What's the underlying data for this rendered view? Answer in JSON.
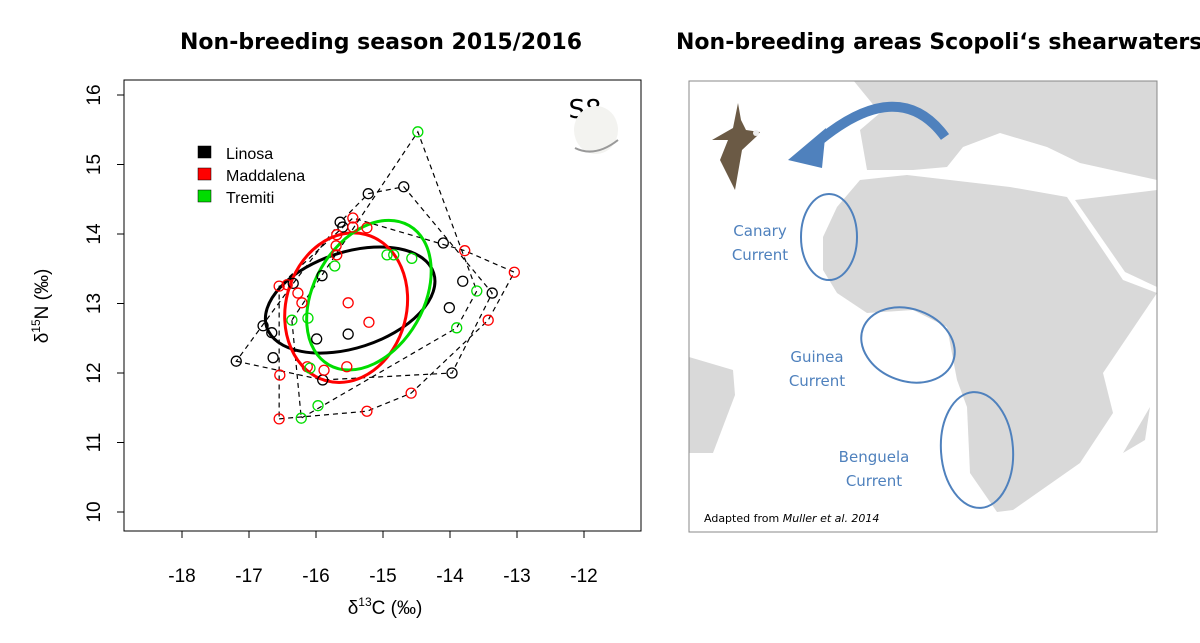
{
  "left_title": "Non-breeding season 2015/2016",
  "right_title": "Non-breeding areas Scopoli‘s shearwaters",
  "chart_data": {
    "type": "scatter",
    "title": "Non-breeding season 2015/2016",
    "xlabel": "δ13C (‰)",
    "ylabel": "δ15N (‰)",
    "xlim": [
      -18.9,
      -11.1
    ],
    "ylim": [
      9.75,
      16.2
    ],
    "xticks": [
      "-18",
      "-17",
      "-16",
      "-15",
      "-14",
      "-13",
      "-12"
    ],
    "yticks": [
      "10",
      "11",
      "12",
      "13",
      "14",
      "15",
      "16"
    ],
    "annotation": "S8",
    "legend_position": "top-left",
    "series": [
      {
        "name": "Linosa",
        "color": "#000000",
        "ellipse": {
          "cx": -15.49,
          "cy": 13.05,
          "a": 1.31,
          "b": 0.69,
          "angle": -18
        },
        "points": [
          [
            -17.19,
            12.17
          ],
          [
            -16.79,
            12.68
          ],
          [
            -16.66,
            12.58
          ],
          [
            -16.64,
            12.22
          ],
          [
            -16.34,
            13.29
          ],
          [
            -15.91,
            13.4
          ],
          [
            -15.64,
            14.17
          ],
          [
            -15.6,
            14.1
          ],
          [
            -15.22,
            14.58
          ],
          [
            -14.69,
            14.68
          ],
          [
            -15.99,
            12.49
          ],
          [
            -15.52,
            12.56
          ],
          [
            -15.9,
            11.9
          ],
          [
            -14.1,
            13.87
          ],
          [
            -13.81,
            13.32
          ],
          [
            -14.01,
            12.94
          ],
          [
            -13.97,
            12.0
          ],
          [
            -13.37,
            13.15
          ]
        ]
      },
      {
        "name": "Maddalena",
        "color": "#ff0000",
        "ellipse": {
          "cx": -15.55,
          "cy": 12.94,
          "a": 0.9,
          "b": 1.09,
          "angle": 15
        },
        "points": [
          [
            -16.55,
            13.25
          ],
          [
            -16.43,
            13.27
          ],
          [
            -16.27,
            13.15
          ],
          [
            -16.21,
            13.01
          ],
          [
            -15.69,
            13.99
          ],
          [
            -15.7,
            13.83
          ],
          [
            -15.69,
            13.7
          ],
          [
            -15.45,
            14.23
          ],
          [
            -15.45,
            14.1
          ],
          [
            -15.24,
            14.09
          ],
          [
            -15.52,
            13.01
          ],
          [
            -15.21,
            12.73
          ],
          [
            -16.13,
            12.09
          ],
          [
            -15.88,
            12.04
          ],
          [
            -15.54,
            12.09
          ],
          [
            -16.54,
            11.97
          ],
          [
            -16.55,
            11.34
          ],
          [
            -15.24,
            11.45
          ],
          [
            -14.58,
            11.71
          ],
          [
            -13.78,
            13.76
          ],
          [
            -13.04,
            13.45
          ],
          [
            -13.43,
            12.76
          ]
        ]
      },
      {
        "name": "Tremiti",
        "color": "#00dd00",
        "ellipse": {
          "cx": -15.21,
          "cy": 13.12,
          "a": 1.2,
          "b": 0.79,
          "angle": -60
        },
        "points": [
          [
            -14.48,
            15.47
          ],
          [
            -15.72,
            13.54
          ],
          [
            -14.94,
            13.7
          ],
          [
            -14.84,
            13.7
          ],
          [
            -14.57,
            13.65
          ],
          [
            -16.36,
            12.76
          ],
          [
            -16.12,
            12.79
          ],
          [
            -13.6,
            13.18
          ],
          [
            -13.9,
            12.65
          ],
          [
            -15.97,
            11.53
          ],
          [
            -16.22,
            11.35
          ],
          [
            -16.09,
            12.07
          ]
        ]
      }
    ]
  },
  "map": {
    "labels": [
      {
        "line1": "Canary",
        "line2": "Current"
      },
      {
        "line1": "Guinea",
        "line2": "Current"
      },
      {
        "line1": "Benguela",
        "line2": "Current"
      }
    ],
    "credit_prefix": "Adapted from ",
    "credit_italic": "Muller et al. 2014",
    "land_color": "#d9d9d9",
    "accent_color": "#4f81bd"
  }
}
